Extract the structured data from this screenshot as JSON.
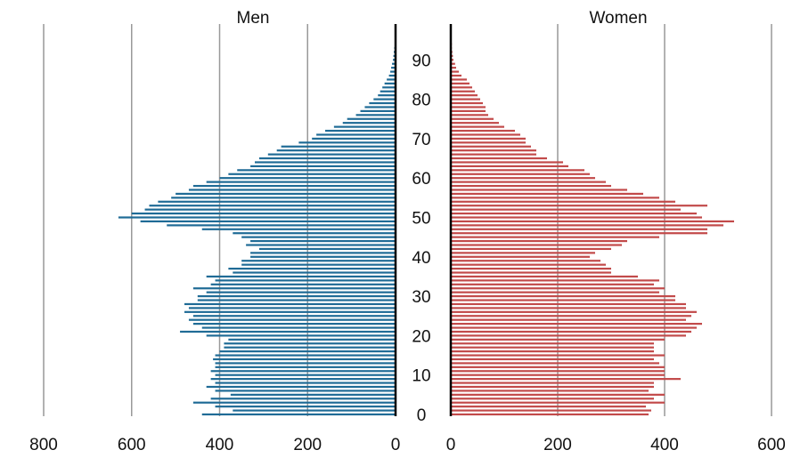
{
  "chart_data": {
    "type": "bar",
    "orientation": "horizontal",
    "chart_kind": "population pyramid",
    "ages": [
      0,
      1,
      2,
      3,
      4,
      5,
      6,
      7,
      8,
      9,
      10,
      11,
      12,
      13,
      14,
      15,
      16,
      17,
      18,
      19,
      20,
      21,
      22,
      23,
      24,
      25,
      26,
      27,
      28,
      29,
      30,
      31,
      32,
      33,
      34,
      35,
      36,
      37,
      38,
      39,
      40,
      41,
      42,
      43,
      44,
      45,
      46,
      47,
      48,
      49,
      50,
      51,
      52,
      53,
      54,
      55,
      56,
      57,
      58,
      59,
      60,
      61,
      62,
      63,
      64,
      65,
      66,
      67,
      68,
      69,
      70,
      71,
      72,
      73,
      74,
      75,
      76,
      77,
      78,
      79,
      80,
      81,
      82,
      83,
      84,
      85,
      86,
      87,
      88,
      89,
      90,
      91,
      92,
      93,
      94,
      95,
      96,
      97,
      98,
      99
    ],
    "age_ticks": [
      "0",
      "10",
      "20",
      "30",
      "40",
      "50",
      "60",
      "70",
      "80",
      "90"
    ],
    "colors": {
      "men": "#1f6b96",
      "women": "#c24a4a",
      "grid": "#999999",
      "axis": "#000000"
    },
    "panels": [
      {
        "title": "Men",
        "direction": "left",
        "xlim": [
          0,
          800
        ],
        "x_ticks": [
          "800",
          "600",
          "400",
          "200",
          "0"
        ],
        "tick_values": [
          800,
          600,
          400,
          200,
          0
        ],
        "values": [
          440,
          370,
          410,
          460,
          420,
          375,
          410,
          430,
          410,
          420,
          410,
          420,
          410,
          410,
          415,
          410,
          400,
          390,
          390,
          380,
          430,
          490,
          440,
          460,
          470,
          460,
          480,
          470,
          480,
          450,
          450,
          430,
          460,
          420,
          410,
          430,
          370,
          380,
          350,
          350,
          330,
          330,
          310,
          340,
          330,
          350,
          370,
          440,
          520,
          580,
          630,
          600,
          570,
          560,
          540,
          510,
          500,
          470,
          460,
          430,
          400,
          380,
          360,
          330,
          320,
          310,
          290,
          270,
          260,
          220,
          190,
          180,
          160,
          140,
          120,
          110,
          90,
          80,
          70,
          60,
          50,
          40,
          35,
          30,
          25,
          20,
          15,
          12,
          10,
          8,
          6,
          5,
          4,
          3,
          2,
          2,
          1,
          1,
          1,
          0
        ]
      },
      {
        "title": "Women",
        "direction": "right",
        "xlim": [
          0,
          600
        ],
        "x_ticks": [
          "0",
          "200",
          "400",
          "600"
        ],
        "tick_values": [
          0,
          200,
          400,
          600
        ],
        "values": [
          370,
          375,
          365,
          400,
          380,
          400,
          370,
          380,
          380,
          430,
          400,
          400,
          400,
          390,
          380,
          400,
          380,
          380,
          380,
          400,
          440,
          450,
          460,
          470,
          440,
          450,
          460,
          440,
          440,
          420,
          420,
          390,
          400,
          380,
          390,
          350,
          300,
          300,
          290,
          280,
          260,
          270,
          300,
          320,
          330,
          390,
          480,
          480,
          510,
          530,
          470,
          460,
          430,
          480,
          420,
          390,
          360,
          330,
          300,
          290,
          270,
          260,
          250,
          220,
          210,
          180,
          160,
          160,
          150,
          140,
          140,
          130,
          120,
          100,
          90,
          80,
          70,
          65,
          65,
          60,
          55,
          50,
          45,
          40,
          35,
          30,
          20,
          15,
          10,
          8,
          5,
          4,
          3,
          2,
          2,
          1,
          1,
          1,
          0,
          0
        ]
      }
    ]
  }
}
